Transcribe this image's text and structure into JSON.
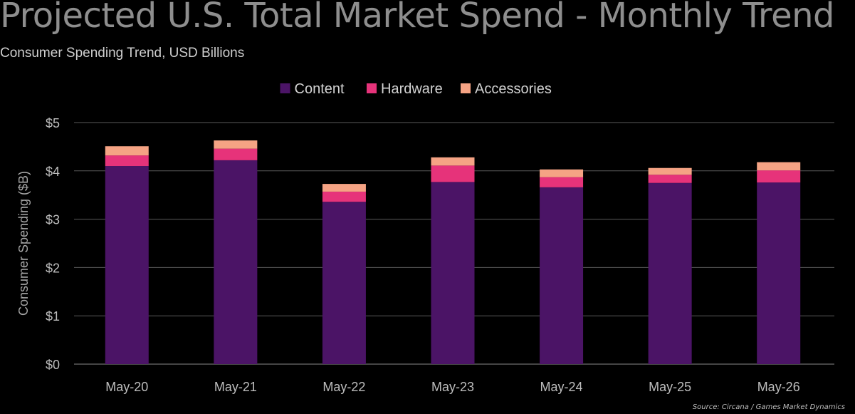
{
  "title": "Projected U.S. Total Market Spend - Monthly Trend",
  "subtitle": "Consumer Spending Trend, USD Billions",
  "source": "Source: Circana / Games Market Dynamics",
  "chart_data": {
    "type": "bar",
    "stacked": true,
    "categories": [
      "May-20",
      "May-21",
      "May-22",
      "May-23",
      "May-24",
      "May-25",
      "May-26"
    ],
    "series": [
      {
        "name": "Content",
        "color": "#4b1466",
        "values": [
          4.1,
          4.22,
          3.36,
          3.77,
          3.66,
          3.75,
          3.76
        ]
      },
      {
        "name": "Hardware",
        "color": "#e6337a",
        "values": [
          0.22,
          0.24,
          0.21,
          0.34,
          0.21,
          0.17,
          0.25
        ]
      },
      {
        "name": "Accessories",
        "color": "#f5a384",
        "values": [
          0.19,
          0.17,
          0.16,
          0.17,
          0.16,
          0.14,
          0.17
        ]
      }
    ],
    "ylabel": "Consumer Spending ($B)",
    "ylim": [
      0,
      5
    ],
    "yticks": [
      "$0",
      "$1",
      "$2",
      "$3",
      "$4",
      "$5"
    ],
    "grid": true,
    "legend_position": "top-center"
  }
}
